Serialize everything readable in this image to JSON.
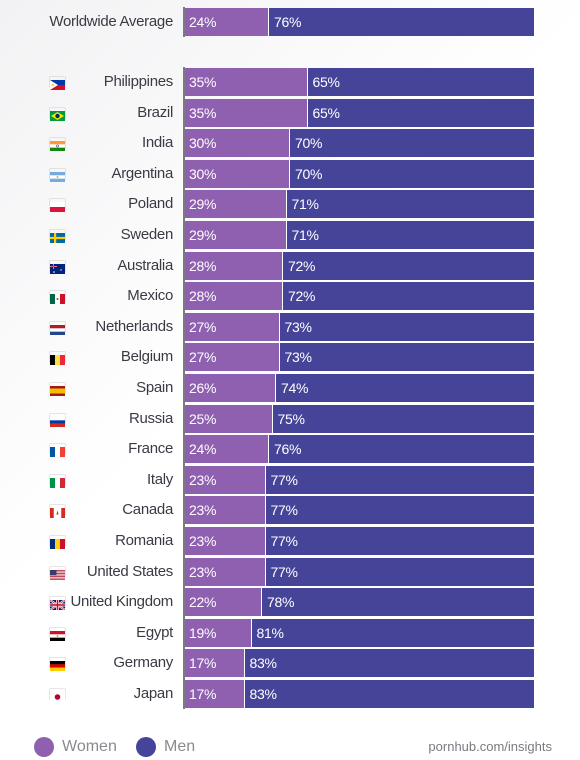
{
  "legend": {
    "women_label": "Women",
    "men_label": "Men"
  },
  "colors": {
    "women": "#8f5fb0",
    "men": "#464499"
  },
  "source": "pornhub.com/insights",
  "chart_data": {
    "type": "bar",
    "orientation": "horizontal",
    "stacked": true,
    "percent_stacked": true,
    "xlim": [
      0,
      100
    ],
    "legend_position": "bottom",
    "categories": [
      "Worldwide Average",
      "Philippines",
      "Brazil",
      "India",
      "Argentina",
      "Poland",
      "Sweden",
      "Australia",
      "Mexico",
      "Netherlands",
      "Belgium",
      "Spain",
      "Russia",
      "France",
      "Italy",
      "Canada",
      "Romania",
      "United States",
      "United Kingdom",
      "Egypt",
      "Germany",
      "Japan"
    ],
    "series": [
      {
        "name": "Women",
        "values": [
          24,
          35,
          35,
          30,
          30,
          29,
          29,
          28,
          28,
          27,
          27,
          26,
          25,
          24,
          23,
          23,
          23,
          23,
          22,
          19,
          17,
          17
        ]
      },
      {
        "name": "Men",
        "values": [
          76,
          65,
          65,
          70,
          70,
          71,
          71,
          72,
          72,
          73,
          73,
          74,
          75,
          76,
          77,
          77,
          77,
          77,
          78,
          81,
          83,
          83
        ]
      }
    ],
    "flags": [
      "",
      "philippines-flag-icon",
      "brazil-flag-icon",
      "india-flag-icon",
      "argentina-flag-icon",
      "poland-flag-icon",
      "sweden-flag-icon",
      "australia-flag-icon",
      "mexico-flag-icon",
      "netherlands-flag-icon",
      "belgium-flag-icon",
      "spain-flag-icon",
      "russia-flag-icon",
      "france-flag-icon",
      "italy-flag-icon",
      "canada-flag-icon",
      "romania-flag-icon",
      "united-states-flag-icon",
      "united-kingdom-flag-icon",
      "egypt-flag-icon",
      "germany-flag-icon",
      "japan-flag-icon"
    ]
  }
}
